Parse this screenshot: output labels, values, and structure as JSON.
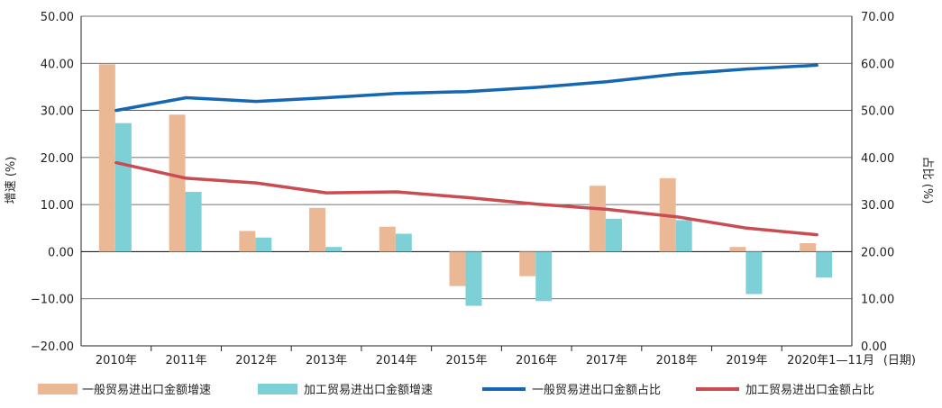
{
  "chart_data": {
    "type": "bar+line",
    "title": "",
    "xlabel": "",
    "x_unit": "(日期)",
    "categories": [
      "2010年",
      "2011年",
      "2012年",
      "2013年",
      "2014年",
      "2015年",
      "2016年",
      "2017年",
      "2018年",
      "2019年",
      "2020年1—11月"
    ],
    "y_left": {
      "label": "增速 (%)",
      "range": [
        -20,
        50
      ],
      "ticks": [
        "50.00",
        "40.00",
        "30.00",
        "20.00",
        "10.00",
        "0.00",
        "−10.00",
        "−20.00"
      ]
    },
    "y_right": {
      "label": "占比 (%)",
      "range": [
        0,
        70
      ],
      "ticks": [
        "70.00",
        "60.00",
        "50.00",
        "40.00",
        "30.00",
        "20.00",
        "10.00",
        "0.00"
      ]
    },
    "grid": "horizontal",
    "legend_position": "bottom",
    "series": [
      {
        "name": "一般贸易进出口金额增速",
        "kind": "bar",
        "axis": "left",
        "color": "#ebb896",
        "values": [
          39.8,
          29.1,
          4.4,
          9.3,
          5.3,
          -7.3,
          -5.2,
          14.0,
          15.6,
          1.0,
          1.8
        ]
      },
      {
        "name": "加工贸易进出口金额增速",
        "kind": "bar",
        "axis": "left",
        "color": "#7dd1d6",
        "values": [
          27.3,
          12.7,
          3.0,
          1.0,
          3.8,
          -11.5,
          -10.5,
          7.0,
          6.7,
          -9.0,
          -5.5
        ]
      },
      {
        "name": "一般贸易进出口金额占比",
        "kind": "line",
        "axis": "right",
        "color": "#1467b0",
        "values": [
          50.0,
          52.7,
          51.9,
          52.7,
          53.6,
          54.0,
          54.9,
          56.1,
          57.7,
          58.8,
          59.6
        ]
      },
      {
        "name": "加工贸易进出口金额占比",
        "kind": "line",
        "axis": "right",
        "color": "#c94c52",
        "values": [
          38.9,
          35.6,
          34.6,
          32.5,
          32.7,
          31.5,
          30.1,
          29.0,
          27.4,
          25.0,
          23.6
        ]
      }
    ]
  }
}
